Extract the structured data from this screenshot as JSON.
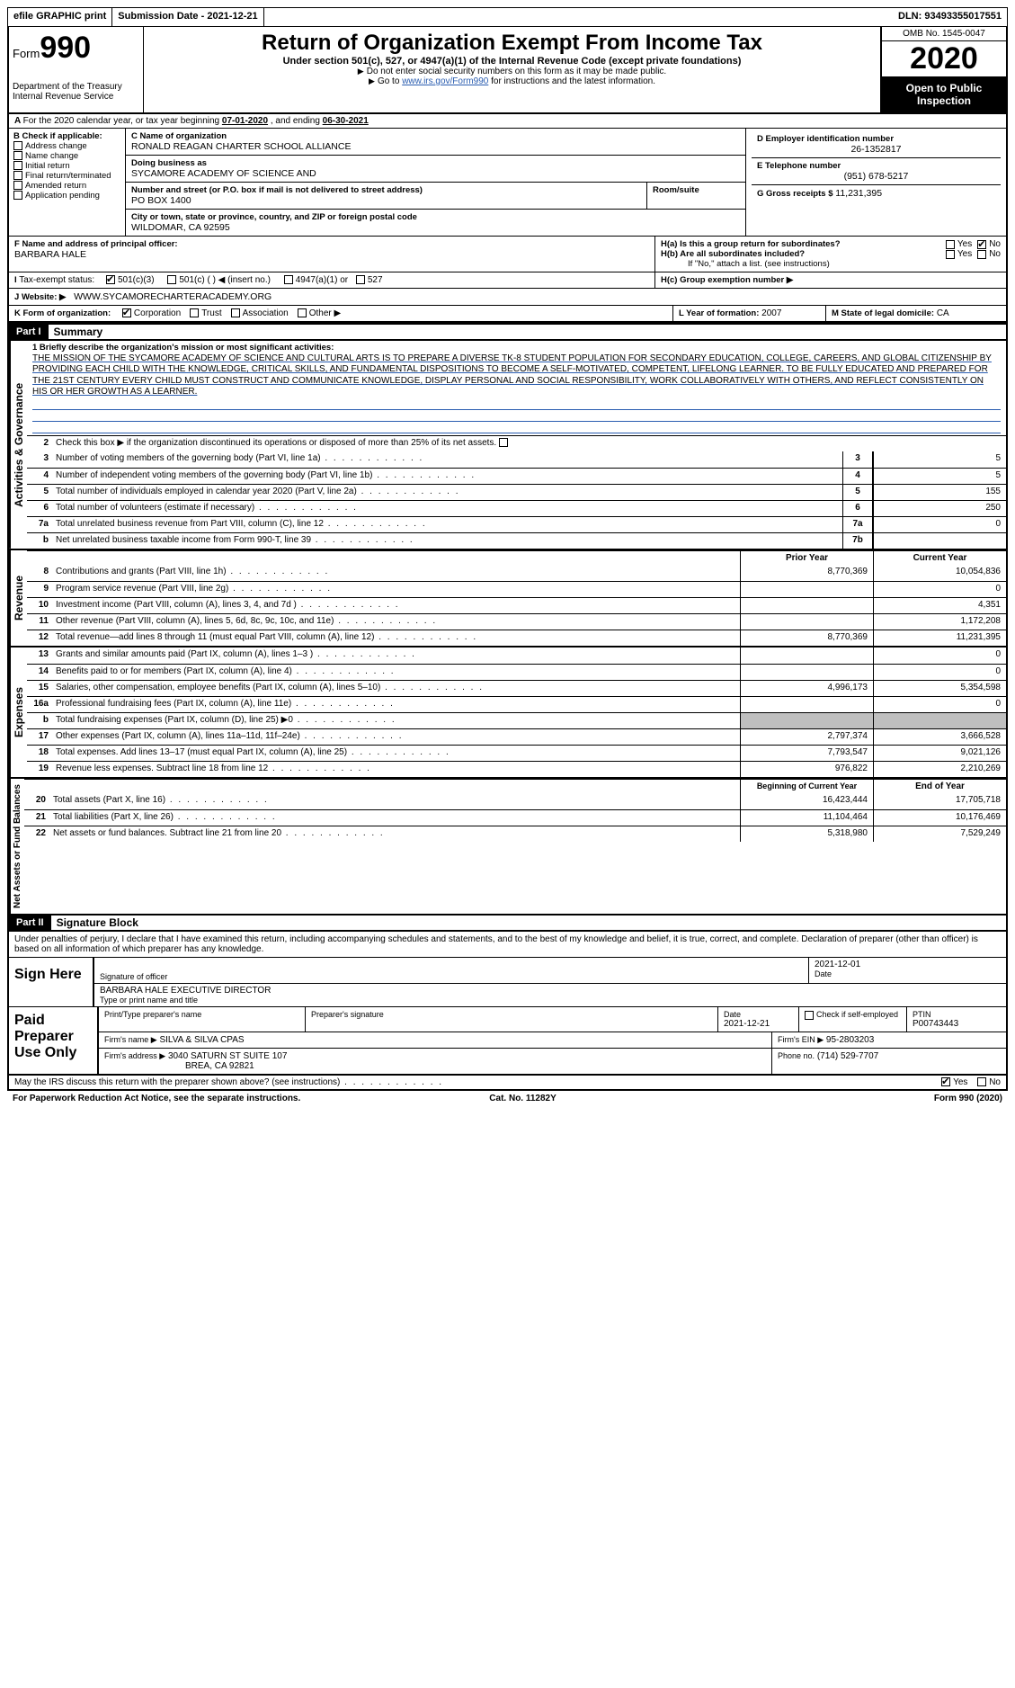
{
  "topbar": {
    "efile": "efile GRAPHIC print",
    "submission_label": "Submission Date - ",
    "submission_date": "2021-12-21",
    "dln_label": "DLN: ",
    "dln": "93493355017551"
  },
  "header": {
    "form_word": "Form",
    "form_num": "990",
    "dept": "Department of the Treasury\nInternal Revenue Service",
    "title": "Return of Organization Exempt From Income Tax",
    "subtitle": "Under section 501(c), 527, or 4947(a)(1) of the Internal Revenue Code (except private foundations)",
    "note1": "Do not enter social security numbers on this form as it may be made public.",
    "note2_pre": "Go to ",
    "note2_link": "www.irs.gov/Form990",
    "note2_post": " for instructions and the latest information.",
    "omb": "OMB No. 1545-0047",
    "year": "2020",
    "open": "Open to Public Inspection"
  },
  "sectionA": {
    "text_pre": "For the 2020 calendar year, or tax year beginning ",
    "begin": "07-01-2020",
    "mid": " , and ending ",
    "end": "06-30-2021"
  },
  "boxB": {
    "label": "B Check if applicable:",
    "items": [
      "Address change",
      "Name change",
      "Initial return",
      "Final return/terminated",
      "Amended return",
      "Application pending"
    ]
  },
  "boxC": {
    "name_label": "C Name of organization",
    "name": "RONALD REAGAN CHARTER SCHOOL ALLIANCE",
    "dba_label": "Doing business as",
    "dba": "SYCAMORE ACADEMY OF SCIENCE AND",
    "street_label": "Number and street (or P.O. box if mail is not delivered to street address)",
    "street": "PO BOX 1400",
    "room_label": "Room/suite",
    "city_label": "City or town, state or province, country, and ZIP or foreign postal code",
    "city": "WILDOMAR, CA  92595"
  },
  "boxD": {
    "label": "D Employer identification number",
    "value": "26-1352817"
  },
  "boxE": {
    "label": "E Telephone number",
    "value": "(951) 678-5217"
  },
  "boxG": {
    "label": "G Gross receipts $",
    "value": "11,231,395"
  },
  "boxF": {
    "label": "F  Name and address of principal officer:",
    "name": "BARBARA HALE"
  },
  "boxH": {
    "a_label": "H(a)  Is this a group return for subordinates?",
    "b_label": "H(b)  Are all subordinates included?",
    "b_note": "If \"No,\" attach a list. (see instructions)",
    "c_label": "H(c)  Group exemption number ▶",
    "yes": "Yes",
    "no": "No"
  },
  "boxI": {
    "label": "Tax-exempt status:",
    "opt1": "501(c)(3)",
    "opt2": "501(c) (  ) ◀ (insert no.)",
    "opt3": "4947(a)(1) or",
    "opt4": "527"
  },
  "boxJ": {
    "label": "Website: ▶",
    "value": "WWW.SYCAMORECHARTERACADEMY.ORG"
  },
  "boxK": {
    "label": "K Form of organization:",
    "opts": [
      "Corporation",
      "Trust",
      "Association",
      "Other ▶"
    ]
  },
  "boxL": {
    "label": "L Year of formation:",
    "value": "2007"
  },
  "boxM": {
    "label": "M State of legal domicile:",
    "value": "CA"
  },
  "part1": {
    "hdr": "Part I",
    "title": "Summary",
    "mission_label": "1  Briefly describe the organization's mission or most significant activities:",
    "mission": "THE MISSION OF THE SYCAMORE ACADEMY OF SCIENCE AND CULTURAL ARTS IS TO PREPARE A DIVERSE TK-8 STUDENT POPULATION FOR SECONDARY EDUCATION, COLLEGE, CAREERS, AND GLOBAL CITIZENSHIP BY PROVIDING EACH CHILD WITH THE KNOWLEDGE, CRITICAL SKILLS, AND FUNDAMENTAL DISPOSITIONS TO BECOME A SELF-MOTIVATED, COMPETENT, LIFELONG LEARNER. TO BE FULLY EDUCATED AND PREPARED FOR THE 21ST CENTURY EVERY CHILD MUST CONSTRUCT AND COMMUNICATE KNOWLEDGE, DISPLAY PERSONAL AND SOCIAL RESPONSIBILITY, WORK COLLABORATIVELY WITH OTHERS, AND REFLECT CONSISTENTLY ON HIS OR HER GROWTH AS A LEARNER.",
    "line2": "Check this box ▶  if the organization discontinued its operations or disposed of more than 25% of its net assets.",
    "side_act": "Activities & Governance",
    "side_rev": "Revenue",
    "side_exp": "Expenses",
    "side_net": "Net Assets or Fund Balances",
    "col_prior": "Prior Year",
    "col_current": "Current Year",
    "col_begin": "Beginning of Current Year",
    "col_end": "End of Year",
    "lines_gov": [
      {
        "n": "3",
        "d": "Number of voting members of the governing body (Part VI, line 1a)",
        "box": "3",
        "v": "5"
      },
      {
        "n": "4",
        "d": "Number of independent voting members of the governing body (Part VI, line 1b)",
        "box": "4",
        "v": "5"
      },
      {
        "n": "5",
        "d": "Total number of individuals employed in calendar year 2020 (Part V, line 2a)",
        "box": "5",
        "v": "155"
      },
      {
        "n": "6",
        "d": "Total number of volunteers (estimate if necessary)",
        "box": "6",
        "v": "250"
      },
      {
        "n": "7a",
        "d": "Total unrelated business revenue from Part VIII, column (C), line 12",
        "box": "7a",
        "v": "0"
      },
      {
        "n": "b",
        "d": "Net unrelated business taxable income from Form 990-T, line 39",
        "box": "7b",
        "v": ""
      }
    ],
    "lines_rev": [
      {
        "n": "8",
        "d": "Contributions and grants (Part VIII, line 1h)",
        "p": "8,770,369",
        "c": "10,054,836"
      },
      {
        "n": "9",
        "d": "Program service revenue (Part VIII, line 2g)",
        "p": "",
        "c": "0"
      },
      {
        "n": "10",
        "d": "Investment income (Part VIII, column (A), lines 3, 4, and 7d )",
        "p": "",
        "c": "4,351"
      },
      {
        "n": "11",
        "d": "Other revenue (Part VIII, column (A), lines 5, 6d, 8c, 9c, 10c, and 11e)",
        "p": "",
        "c": "1,172,208"
      },
      {
        "n": "12",
        "d": "Total revenue—add lines 8 through 11 (must equal Part VIII, column (A), line 12)",
        "p": "8,770,369",
        "c": "11,231,395"
      }
    ],
    "lines_exp": [
      {
        "n": "13",
        "d": "Grants and similar amounts paid (Part IX, column (A), lines 1–3 )",
        "p": "",
        "c": "0"
      },
      {
        "n": "14",
        "d": "Benefits paid to or for members (Part IX, column (A), line 4)",
        "p": "",
        "c": "0"
      },
      {
        "n": "15",
        "d": "Salaries, other compensation, employee benefits (Part IX, column (A), lines 5–10)",
        "p": "4,996,173",
        "c": "5,354,598"
      },
      {
        "n": "16a",
        "d": "Professional fundraising fees (Part IX, column (A), line 11e)",
        "p": "",
        "c": "0"
      },
      {
        "n": "b",
        "d": "Total fundraising expenses (Part IX, column (D), line 25) ▶0",
        "p": "shaded",
        "c": "shaded"
      },
      {
        "n": "17",
        "d": "Other expenses (Part IX, column (A), lines 11a–11d, 11f–24e)",
        "p": "2,797,374",
        "c": "3,666,528"
      },
      {
        "n": "18",
        "d": "Total expenses. Add lines 13–17 (must equal Part IX, column (A), line 25)",
        "p": "7,793,547",
        "c": "9,021,126"
      },
      {
        "n": "19",
        "d": "Revenue less expenses. Subtract line 18 from line 12",
        "p": "976,822",
        "c": "2,210,269"
      }
    ],
    "lines_net": [
      {
        "n": "20",
        "d": "Total assets (Part X, line 16)",
        "p": "16,423,444",
        "c": "17,705,718"
      },
      {
        "n": "21",
        "d": "Total liabilities (Part X, line 26)",
        "p": "11,104,464",
        "c": "10,176,469"
      },
      {
        "n": "22",
        "d": "Net assets or fund balances. Subtract line 21 from line 20",
        "p": "5,318,980",
        "c": "7,529,249"
      }
    ]
  },
  "part2": {
    "hdr": "Part II",
    "title": "Signature Block",
    "decl": "Under penalties of perjury, I declare that I have examined this return, including accompanying schedules and statements, and to the best of my knowledge and belief, it is true, correct, and complete. Declaration of preparer (other than officer) is based on all information of which preparer has any knowledge.",
    "sign_here": "Sign Here",
    "sig_officer": "Signature of officer",
    "sig_date": "Date",
    "sig_date_val": "2021-12-01",
    "officer_name": "BARBARA HALE  EXECUTIVE DIRECTOR",
    "type_name": "Type or print name and title",
    "paid": "Paid Preparer Use Only",
    "pp_name_label": "Print/Type preparer's name",
    "pp_sig_label": "Preparer's signature",
    "pp_date_label": "Date",
    "pp_date": "2021-12-21",
    "pp_check": "Check         if self-employed",
    "ptin_label": "PTIN",
    "ptin": "P00743443",
    "firm_name_label": "Firm's name    ▶",
    "firm_name": "SILVA & SILVA CPAS",
    "firm_ein_label": "Firm's EIN ▶",
    "firm_ein": "95-2803203",
    "firm_addr_label": "Firm's address ▶",
    "firm_addr1": "3040 SATURN ST SUITE 107",
    "firm_addr2": "BREA, CA  92821",
    "phone_label": "Phone no.",
    "phone": "(714) 529-7707",
    "discuss": "May the IRS discuss this return with the preparer shown above? (see instructions)",
    "yes": "Yes",
    "no": "No"
  },
  "footer": {
    "left": "For Paperwork Reduction Act Notice, see the separate instructions.",
    "mid": "Cat. No. 11282Y",
    "right": "Form 990 (2020)"
  }
}
